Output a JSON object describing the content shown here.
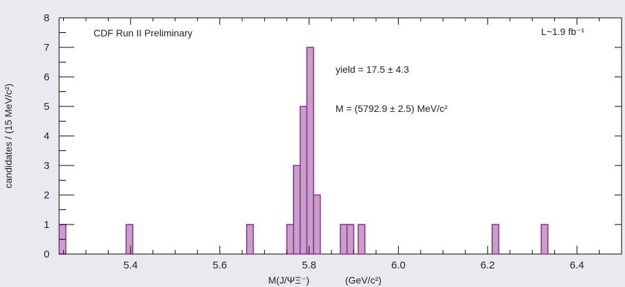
{
  "chart_data": {
    "type": "bar",
    "subtype": "histogram",
    "bin_width": 0.015,
    "xlim": [
      5.24,
      6.5
    ],
    "ylim": [
      0,
      8
    ],
    "x_ticks": [
      5.4,
      5.6,
      5.8,
      6.0,
      6.2,
      6.4
    ],
    "x_tick_labels": [
      "5.4",
      "5.6",
      "5.8",
      "6.0",
      "6.2",
      "6.4"
    ],
    "y_ticks": [
      0,
      1,
      2,
      3,
      4,
      5,
      6,
      7,
      8
    ],
    "y_tick_labels": [
      "0",
      "1",
      "2",
      "3",
      "4",
      "5",
      "6",
      "7",
      "8"
    ],
    "xlabel": "M(J/ΨΞ⁻)",
    "xlabel_unit": "(GeV/c²)",
    "ylabel": "candidates / (15 MeV/c²)",
    "bins": [
      {
        "x": 5.24,
        "count": 1
      },
      {
        "x": 5.39,
        "count": 1
      },
      {
        "x": 5.66,
        "count": 1
      },
      {
        "x": 5.75,
        "count": 1
      },
      {
        "x": 5.765,
        "count": 3
      },
      {
        "x": 5.78,
        "count": 5
      },
      {
        "x": 5.795,
        "count": 7
      },
      {
        "x": 5.81,
        "count": 2
      },
      {
        "x": 5.87,
        "count": 1
      },
      {
        "x": 5.885,
        "count": 1
      },
      {
        "x": 5.91,
        "count": 1
      },
      {
        "x": 6.21,
        "count": 1
      },
      {
        "x": 6.32,
        "count": 1
      }
    ],
    "annotations": {
      "experiment": "CDF Run II Preliminary",
      "luminosity": "L~1.9 fb⁻¹",
      "yield": "yield = 17.5 ± 4.3",
      "mass": "M = (5792.9 ± 2.5) MeV/c²"
    },
    "colors": {
      "fill": "#c79fc9",
      "edge": "#8b2d8e",
      "plot_background": "#ffffff",
      "page_background": "#e9eaf0"
    },
    "grid": false,
    "legend": "none"
  }
}
